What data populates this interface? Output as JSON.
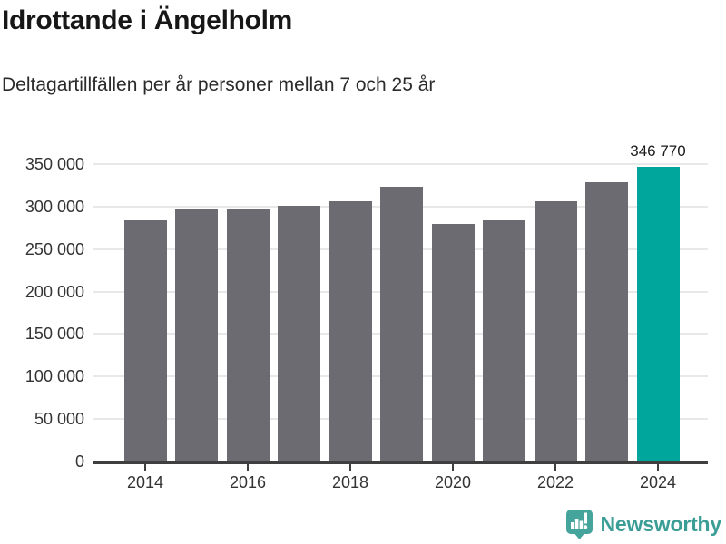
{
  "header": {
    "title": "Idrottande i Ängelholm",
    "subtitle": "Deltagartillfällen per år personer mellan 7 och 25 år"
  },
  "chart_data": {
    "type": "bar",
    "title": "Idrottande i Ängelholm",
    "subtitle": "Deltagartillfällen per år personer mellan 7 och 25 år",
    "categories": [
      "2014",
      "2015",
      "2016",
      "2017",
      "2018",
      "2019",
      "2020",
      "2021",
      "2022",
      "2023",
      "2024"
    ],
    "values": [
      283500,
      298000,
      297000,
      300500,
      306500,
      323000,
      279500,
      283500,
      306500,
      328500,
      346770
    ],
    "highlight_index": 10,
    "highlight_value_label": "346 770",
    "ylim": [
      0,
      350000
    ],
    "ytick_values": [
      0,
      50000,
      100000,
      150000,
      200000,
      250000,
      300000,
      350000
    ],
    "ytick_labels": [
      "0",
      "50 000",
      "100 000",
      "150 000",
      "200 000",
      "250 000",
      "300 000",
      "350 000"
    ],
    "xtick_years": [
      "2014",
      "2016",
      "2018",
      "2020",
      "2022",
      "2024"
    ],
    "grid": "horizontal",
    "legend": "none",
    "bar_color": "#6c6b71",
    "highlight_color": "#00a69b",
    "gridline_color": "#e8e8e8",
    "axis_color": "#3f3f3f"
  },
  "footer": {
    "brand": "Newsworthy",
    "brand_color": "#3b9e96",
    "logo_color": "#45a49b",
    "logo_icon": "bar-chart-speech-bubble-icon"
  }
}
